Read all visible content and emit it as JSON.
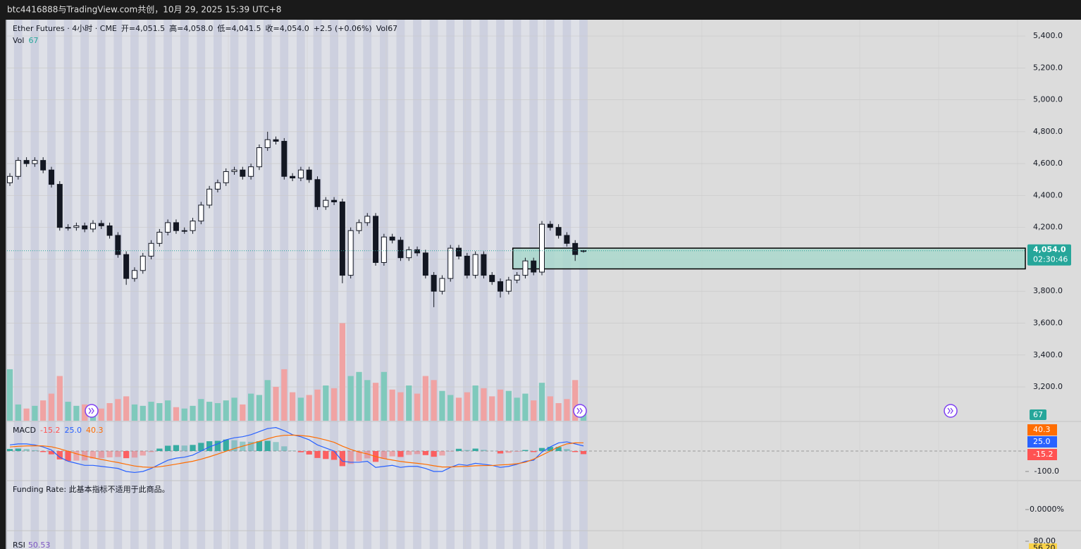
{
  "chart_data": {
    "type": "candlestick",
    "title": "btc4416888与TradingView.com共创，10月 29, 2025 15:39 UTC+8",
    "legend": {
      "symbol": "Ether Futures · 4小时 · CME",
      "open_prefix": "开=",
      "high_prefix": "高=",
      "low_prefix": "低=",
      "close_prefix": "收=",
      "change": "+2.5 (+0.06%)",
      "vol_label": "Vol",
      "countdown": "02:30:46"
    },
    "open": [
      4480,
      4520,
      4620,
      4600,
      4620,
      4560,
      4470,
      4200,
      4200,
      4210,
      4190,
      4225,
      4210,
      4150,
      4030,
      3880,
      3930,
      4020,
      4100,
      4170,
      4230,
      4180,
      4180,
      4240,
      4340,
      4440,
      4480,
      4550,
      4560,
      4520,
      4580,
      4700,
      4750,
      4740,
      4520,
      4510,
      4560,
      4500,
      4330,
      4370,
      4360,
      3900,
      4180,
      4230,
      4270,
      3980,
      4140,
      4120,
      4010,
      4060,
      4040,
      3900,
      3800,
      3880,
      4070,
      4020,
      3900,
      4030,
      3900,
      3860,
      3800,
      3870,
      3900,
      3990,
      3920,
      4220,
      4200,
      4150,
      4100,
      4051.5
    ],
    "high": [
      4540,
      4640,
      4640,
      4640,
      4640,
      4580,
      4490,
      4220,
      4230,
      4230,
      4245,
      4245,
      4230,
      4170,
      4050,
      3950,
      4040,
      4120,
      4190,
      4250,
      4250,
      4200,
      4260,
      4360,
      4460,
      4500,
      4570,
      4580,
      4580,
      4600,
      4720,
      4800,
      4770,
      4760,
      4540,
      4580,
      4580,
      4520,
      4390,
      4390,
      4380,
      4200,
      4250,
      4290,
      4290,
      4160,
      4160,
      4140,
      4080,
      4080,
      4060,
      3920,
      3900,
      4090,
      4090,
      4040,
      4050,
      4050,
      3920,
      3880,
      3890,
      3920,
      4010,
      4010,
      4240,
      4240,
      4220,
      4170,
      4120,
      4058
    ],
    "low": [
      4460,
      4500,
      4580,
      4580,
      4540,
      4450,
      4180,
      4180,
      4180,
      4170,
      4170,
      4190,
      4130,
      4010,
      3840,
      3860,
      3910,
      4000,
      4080,
      4150,
      4160,
      4160,
      4160,
      4220,
      4320,
      4420,
      4460,
      4530,
      4500,
      4500,
      4560,
      4680,
      4720,
      4500,
      4490,
      4490,
      4480,
      4310,
      4310,
      4340,
      3850,
      3880,
      4160,
      4210,
      3960,
      3960,
      4100,
      3990,
      3990,
      4020,
      3880,
      3700,
      3780,
      3860,
      4000,
      3880,
      3880,
      3880,
      3840,
      3760,
      3780,
      3850,
      3880,
      3900,
      3900,
      4180,
      4130,
      4080,
      3990,
      4041.5
    ],
    "close": [
      4520,
      4620,
      4600,
      4620,
      4560,
      4470,
      4200,
      4200,
      4210,
      4190,
      4225,
      4210,
      4150,
      4030,
      3880,
      3930,
      4020,
      4100,
      4170,
      4230,
      4180,
      4180,
      4240,
      4340,
      4440,
      4480,
      4550,
      4560,
      4520,
      4580,
      4700,
      4750,
      4740,
      4520,
      4510,
      4560,
      4500,
      4330,
      4370,
      4360,
      3900,
      4180,
      4230,
      4270,
      3980,
      4140,
      4120,
      4010,
      4060,
      4040,
      3900,
      3800,
      3880,
      4070,
      4020,
      3900,
      4030,
      3900,
      3860,
      3800,
      3870,
      3900,
      3990,
      3920,
      4220,
      4200,
      4150,
      4100,
      4030,
      4054
    ],
    "value_labels": {
      "open": {
        "69": "4,051.5"
      },
      "high": {
        "69": "4,058.0"
      },
      "low": {
        "69": "4,041.5"
      },
      "close": {
        "69": "4,054.0"
      }
    },
    "volume": [
      380,
      120,
      90,
      110,
      150,
      200,
      330,
      140,
      110,
      120,
      100,
      90,
      130,
      160,
      180,
      120,
      110,
      140,
      130,
      150,
      100,
      90,
      110,
      160,
      140,
      130,
      150,
      170,
      120,
      200,
      190,
      300,
      250,
      380,
      210,
      170,
      190,
      230,
      260,
      240,
      720,
      330,
      360,
      300,
      280,
      360,
      230,
      210,
      260,
      200,
      330,
      300,
      220,
      190,
      170,
      210,
      260,
      240,
      180,
      230,
      220,
      170,
      200,
      150,
      280,
      180,
      130,
      160,
      300,
      67
    ],
    "volume_ylim": [
      0,
      780
    ],
    "up_color": "#ffffff",
    "down_color": "#131722",
    "volume_up_color": "#7fc9bc",
    "volume_down_color": "#f0a3a3",
    "ylim": [
      2988,
      5502
    ],
    "yticks": [
      {
        "value": 3200,
        "label": "3,200.0"
      },
      {
        "value": 3400,
        "label": "3,400.0"
      },
      {
        "value": 3600,
        "label": "3,600.0"
      },
      {
        "value": 3800,
        "label": "3,800.0"
      },
      {
        "value": 4000,
        "label": "4,000.0"
      },
      {
        "value": 4200,
        "label": "4,200.0"
      },
      {
        "value": 4400,
        "label": "4,400.0"
      },
      {
        "value": 4600,
        "label": "4,600.0"
      },
      {
        "value": 4800,
        "label": "4,800.0"
      },
      {
        "value": 5000,
        "label": "5,000.0"
      },
      {
        "value": 5200,
        "label": "5,200.0"
      },
      {
        "value": 5400,
        "label": "5,400.0"
      }
    ],
    "grid": true,
    "zone": {
      "from_index": 61,
      "high": 4070,
      "low": 3940,
      "color": "#a8d8cc"
    },
    "macd": {
      "title": "MACD",
      "ylim": [
        -138,
        138
      ],
      "yticks": [
        {
          "value": -100,
          "label": "-100.0"
        }
      ],
      "series": [
        {
          "color": "#2962ff",
          "values": [
            30,
            35,
            35,
            30,
            20,
            5,
            -30,
            -50,
            -60,
            -70,
            -70,
            -75,
            -80,
            -85,
            -100,
            -105,
            -100,
            -85,
            -65,
            -45,
            -35,
            -30,
            -20,
            0,
            20,
            35,
            55,
            65,
            70,
            80,
            95,
            110,
            115,
            100,
            80,
            70,
            55,
            30,
            15,
            0,
            -50,
            -55,
            -55,
            -50,
            -80,
            -75,
            -70,
            -80,
            -75,
            -75,
            -85,
            -100,
            -100,
            -80,
            -65,
            -70,
            -60,
            -65,
            -70,
            -80,
            -75,
            -65,
            -50,
            -45,
            -5,
            20,
            40,
            45,
            35,
            25
          ],
          "value_labels": {
            "69": "25.0"
          }
        },
        {
          "color": "#ff6d00",
          "values": [
            20,
            23,
            25,
            26,
            25,
            21,
            11,
            -1,
            -13,
            -24,
            -33,
            -41,
            -49,
            -56,
            -65,
            -73,
            -78,
            -80,
            -77,
            -71,
            -64,
            -57,
            -50,
            -40,
            -28,
            -15,
            -1,
            12,
            24,
            35,
            47,
            60,
            71,
            77,
            78,
            76,
            72,
            64,
            54,
            43,
            24,
            8,
            -5,
            -14,
            -27,
            -37,
            -44,
            -51,
            -56,
            -60,
            -65,
            -72,
            -78,
            -78,
            -76,
            -75,
            -72,
            -71,
            -71,
            -68,
            -66,
            -62,
            -55,
            -40,
            -20,
            0,
            20,
            35,
            40,
            40.3
          ]
        }
      ],
      "histogram": {
        "up_color": "#26a69a",
        "down_color": "#ff5252",
        "values": [
          10,
          12,
          10,
          4,
          -5,
          -16,
          -41,
          -49,
          -47,
          -46,
          -37,
          -34,
          -31,
          -29,
          -35,
          -32,
          -22,
          -5,
          12,
          26,
          29,
          27,
          30,
          40,
          48,
          50,
          56,
          53,
          46,
          45,
          48,
          50,
          44,
          23,
          2,
          -6,
          -17,
          -34,
          -39,
          -43,
          -74,
          -63,
          -50,
          -36,
          -53,
          -38,
          -26,
          -29,
          -19,
          -15,
          -20,
          -28,
          -22,
          -2,
          11,
          5,
          12,
          6,
          1,
          -12,
          -9,
          -3,
          5,
          -5,
          15,
          20,
          20,
          10,
          -5,
          -15.2
        ]
      }
    },
    "funding": {
      "text": "Funding Rate: 此基本指标不适用于此商品。",
      "ylim": [
        -0.01,
        0.01
      ],
      "yticks": [
        {
          "value": 0,
          "label": "0.0000%"
        }
      ]
    },
    "rsi": {
      "title": "RSI",
      "value": 50.53,
      "badge_label": "56.20",
      "ylim": [
        63,
        100
      ],
      "yticks": [
        {
          "value": 80,
          "label": "80.00"
        }
      ]
    }
  }
}
